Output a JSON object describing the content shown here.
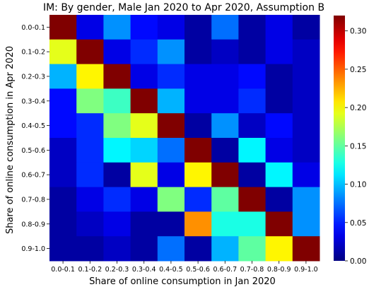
{
  "chart_data": {
    "type": "heatmap",
    "title": "IM: By gender,    Male    Jan 2020 to Apr 2020, Assumption B",
    "xlabel": "Share of online consumption in Jan 2020",
    "ylabel": "Share of online consumption in Apr 2020",
    "x_categories": [
      "0.0-0.1",
      "0.1-0.2",
      "0.2-0.3",
      "0.3-0.4",
      "0.4-0.5",
      "0.5-0.6",
      "0.6-0.7",
      "0.7-0.8",
      "0.8-0.9",
      "0.9-1.0"
    ],
    "y_categories": [
      "0.0-0.1",
      "0.1-0.2",
      "0.2-0.3",
      "0.3-0.4",
      "0.4-0.5",
      "0.5-0.6",
      "0.6-0.7",
      "0.7-0.8",
      "0.8-0.9",
      "0.9-1.0"
    ],
    "values": [
      [
        0.32,
        0.03,
        0.08,
        0.04,
        0.03,
        0.01,
        0.07,
        0.01,
        0.03,
        0.01
      ],
      [
        0.18,
        0.32,
        0.03,
        0.05,
        0.08,
        0.01,
        0.02,
        0.01,
        0.03,
        0.02
      ],
      [
        0.09,
        0.19,
        0.32,
        0.03,
        0.05,
        0.03,
        0.03,
        0.04,
        0.01,
        0.02
      ],
      [
        0.04,
        0.15,
        0.13,
        0.32,
        0.09,
        0.03,
        0.03,
        0.05,
        0.01,
        0.02
      ],
      [
        0.04,
        0.05,
        0.15,
        0.18,
        0.32,
        0.01,
        0.08,
        0.02,
        0.04,
        0.02
      ],
      [
        0.02,
        0.05,
        0.11,
        0.1,
        0.07,
        0.32,
        0.01,
        0.11,
        0.03,
        0.02
      ],
      [
        0.02,
        0.05,
        0.01,
        0.18,
        0.03,
        0.19,
        0.32,
        0.01,
        0.11,
        0.03
      ],
      [
        0.01,
        0.03,
        0.05,
        0.03,
        0.15,
        0.05,
        0.14,
        0.32,
        0.01,
        0.08
      ],
      [
        0.01,
        0.02,
        0.03,
        0.01,
        0.01,
        0.22,
        0.12,
        0.12,
        0.32,
        0.08
      ],
      [
        0.01,
        0.01,
        0.02,
        0.01,
        0.07,
        0.01,
        0.09,
        0.14,
        0.19,
        0.32
      ]
    ],
    "colorbar": {
      "min": 0.0,
      "max": 0.3,
      "ticks": [
        0.0,
        0.05,
        0.1,
        0.15,
        0.2,
        0.25,
        0.3
      ],
      "tick_labels": [
        "0.00",
        "0.05",
        "0.10",
        "0.15",
        "0.20",
        "0.25",
        "0.30"
      ],
      "colormap": "jet"
    },
    "grid": false,
    "legend": "colorbar-right"
  }
}
